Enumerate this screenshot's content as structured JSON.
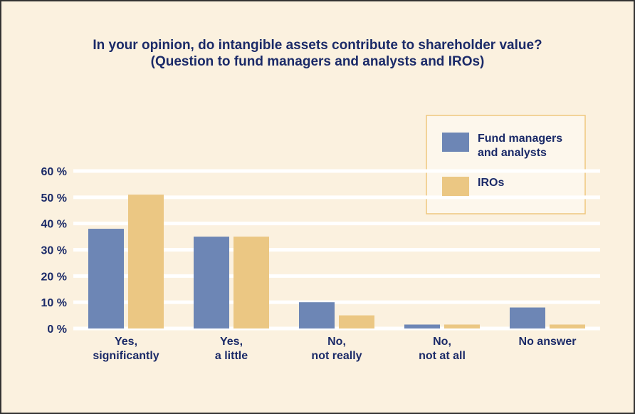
{
  "chart_data": {
    "type": "bar",
    "title": [
      "In your opinion, do intangible assets contribute to shareholder value?",
      "(Question to fund managers and analysts and IROs)"
    ],
    "categories": [
      [
        "Yes,",
        "significantly"
      ],
      [
        "Yes,",
        "a little"
      ],
      [
        "No,",
        "not really"
      ],
      [
        "No,",
        "not at all"
      ],
      [
        "No answer"
      ]
    ],
    "series": [
      {
        "name": [
          "Fund managers",
          "and analysts"
        ],
        "color": "#6d86b5",
        "values": [
          38,
          35,
          10,
          1.5,
          8
        ]
      },
      {
        "name": [
          "IROs"
        ],
        "color": "#ebc783",
        "values": [
          51,
          35,
          5,
          1.5,
          1.5
        ]
      }
    ],
    "ylim": [
      0,
      60
    ],
    "yticks": [
      {
        "value": 0,
        "label": "0 %"
      },
      {
        "value": 10,
        "label": "10 %"
      },
      {
        "value": 20,
        "label": "20 %"
      },
      {
        "value": 30,
        "label": "30 %"
      },
      {
        "value": 40,
        "label": "40 %"
      },
      {
        "value": 50,
        "label": "50 %"
      },
      {
        "value": 60,
        "label": "60 %"
      }
    ],
    "grid": true,
    "legend": "top-right"
  }
}
